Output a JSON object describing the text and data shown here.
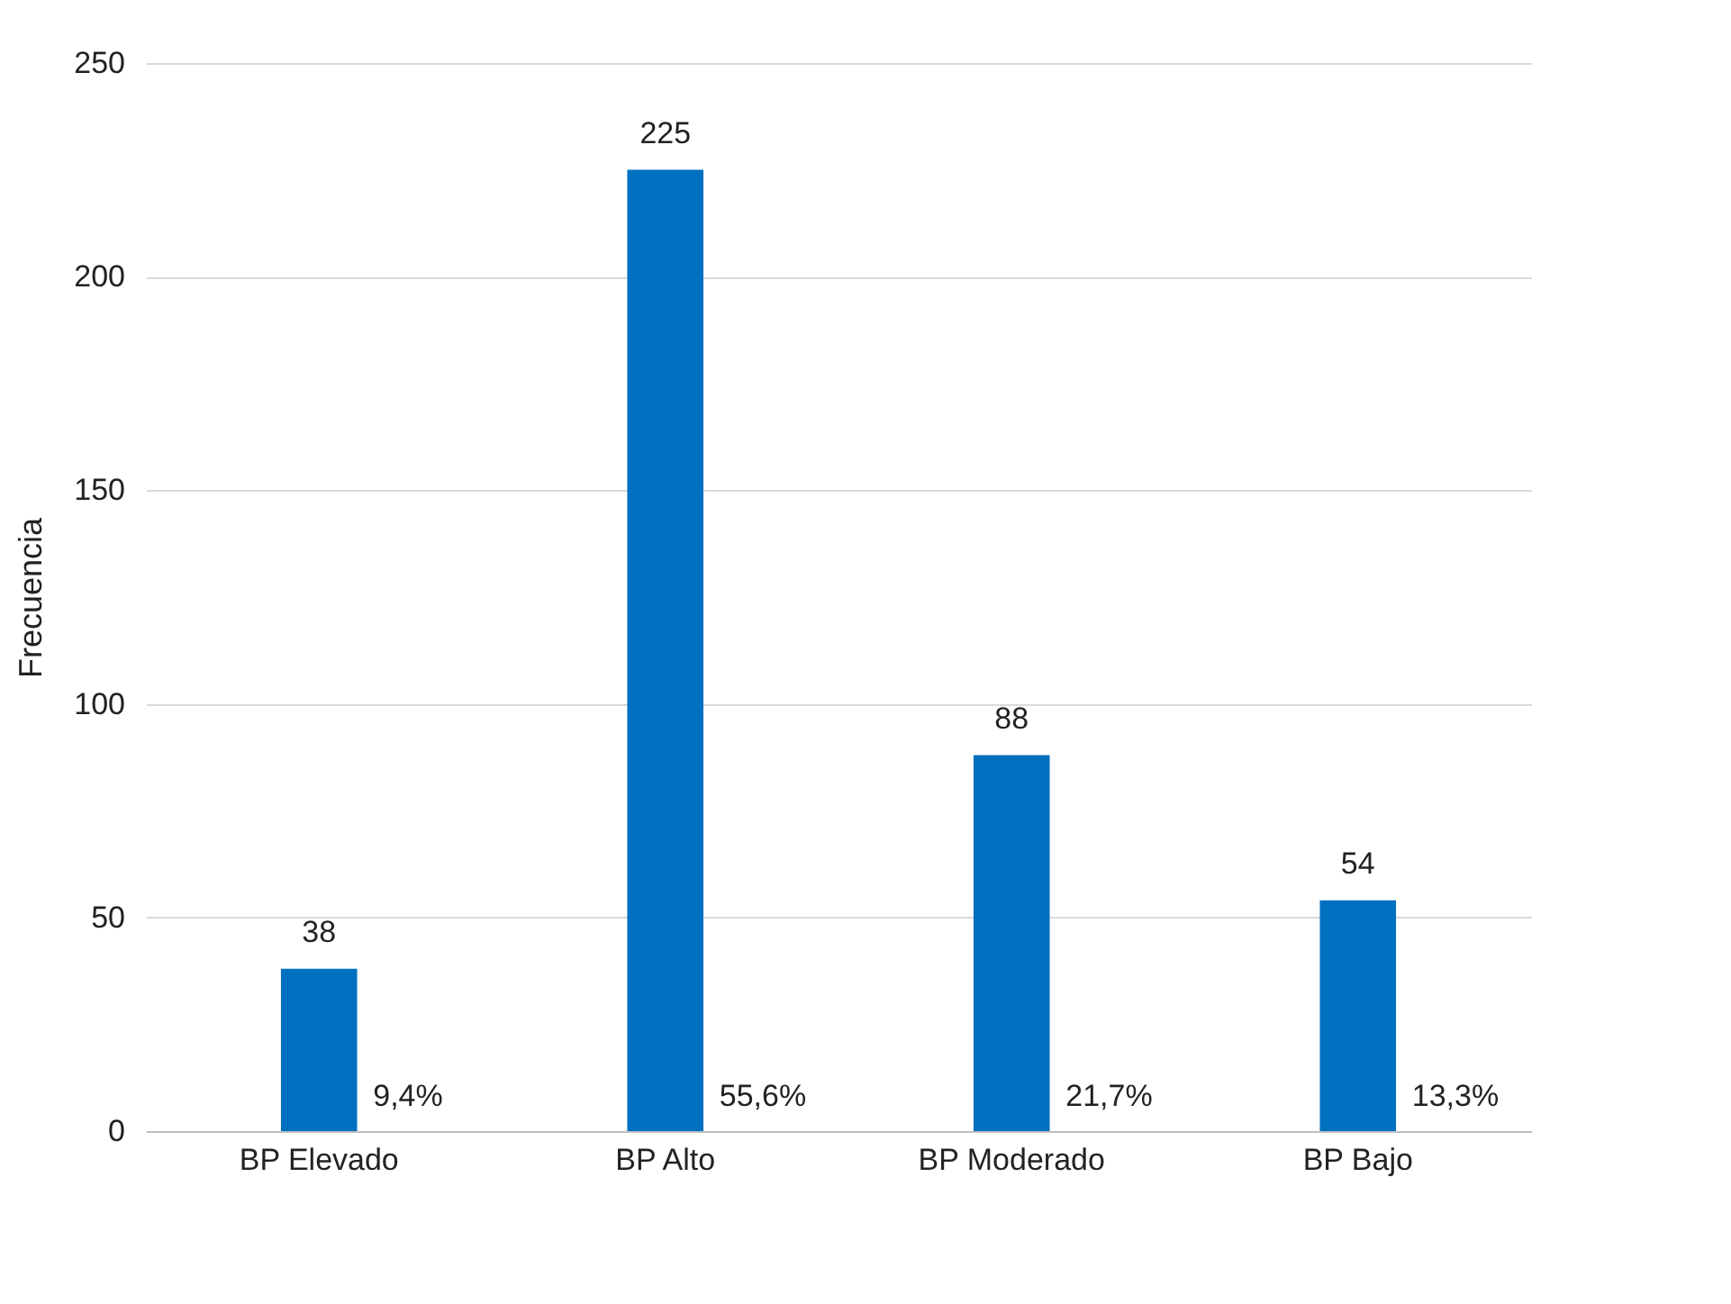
{
  "chart_data": {
    "type": "bar",
    "ylabel": "Frecuencia",
    "categories": [
      "BP Elevado",
      "BP Alto",
      "BP Moderado",
      "BP Bajo"
    ],
    "values": [
      38,
      225,
      88,
      54
    ],
    "color": "#0070c0",
    "ylim": [
      0,
      250
    ],
    "yticks": [
      0,
      50,
      100,
      150,
      200,
      250
    ],
    "grid": "y",
    "data_labels": true,
    "annotations": [
      "9,4%",
      "55,6%",
      "21,7%",
      "13,3%"
    ]
  }
}
